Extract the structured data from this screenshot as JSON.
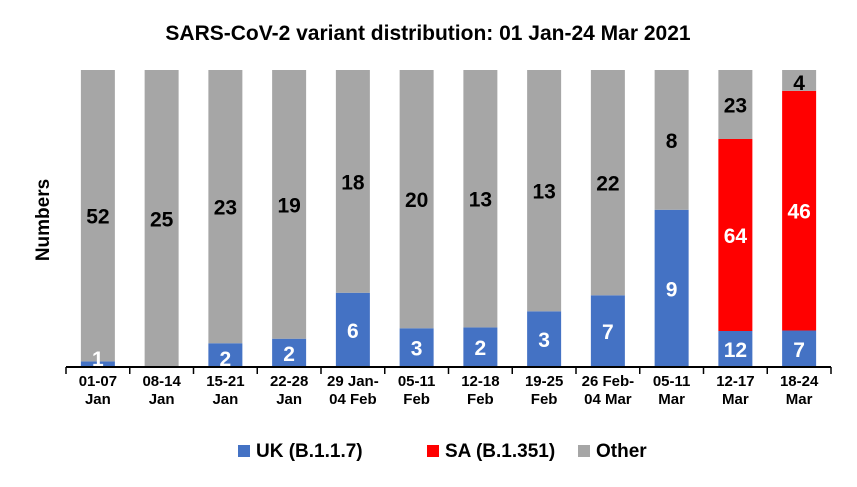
{
  "chart_data": {
    "type": "bar",
    "stacked": true,
    "normalized": true,
    "title": "SARS-CoV-2 variant distribution: 01 Jan-24 Mar 2021",
    "ylabel": "Numbers",
    "xlabel": "",
    "categories": [
      [
        "01-07",
        "Jan"
      ],
      [
        "08-14",
        "Jan"
      ],
      [
        "15-21",
        "Jan"
      ],
      [
        "22-28",
        "Jan"
      ],
      [
        "29 Jan-",
        "04 Feb"
      ],
      [
        "05-11",
        "Feb"
      ],
      [
        "12-18",
        "Feb"
      ],
      [
        "19-25",
        "Feb"
      ],
      [
        "26 Feb-",
        "04 Mar"
      ],
      [
        "05-11",
        "Mar"
      ],
      [
        "12-17",
        "Mar"
      ],
      [
        "18-24",
        "Mar"
      ]
    ],
    "series": [
      {
        "name": "UK (B.1.1.7)",
        "color": "#4472c4",
        "values": [
          1,
          0,
          2,
          2,
          6,
          3,
          2,
          3,
          7,
          9,
          12,
          7
        ]
      },
      {
        "name": "SA (B.1.351)",
        "color": "#ff0000",
        "values": [
          0,
          0,
          0,
          0,
          0,
          0,
          0,
          0,
          0,
          0,
          64,
          46
        ]
      },
      {
        "name": "Other",
        "color": "#a6a6a6",
        "values": [
          52,
          25,
          23,
          19,
          18,
          20,
          13,
          13,
          22,
          8,
          23,
          4
        ]
      }
    ],
    "legend_position": "bottom",
    "grid": false
  }
}
